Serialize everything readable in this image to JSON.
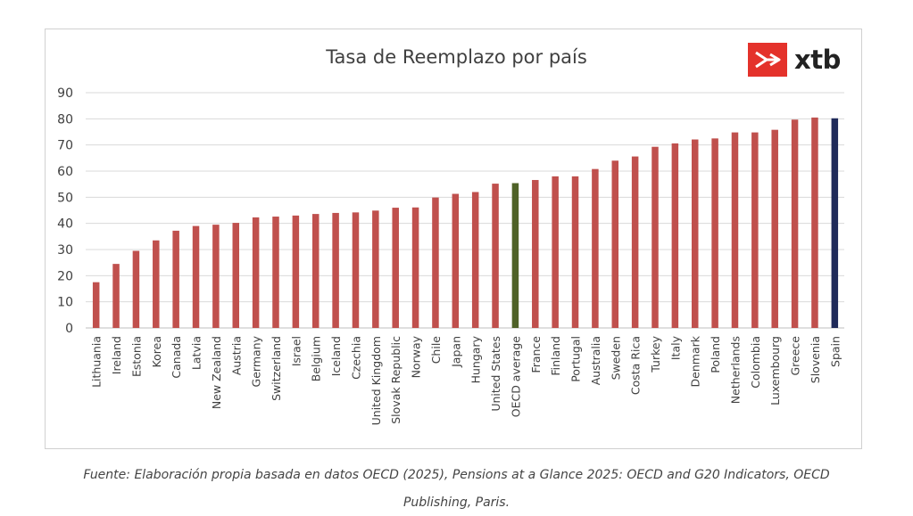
{
  "header": {
    "title": "Tasa de Reemplazo por país"
  },
  "logo": {
    "text": "xtb",
    "mark_icon": "xtb-logo-x-icon",
    "color": "#e4322b"
  },
  "caption": {
    "line1": "Fuente: Elaboración propia basada en datos OECD (2025), Pensions at a Glance 2025: OECD and G20 Indicators, OECD",
    "line2": "Publishing, Paris."
  },
  "colors": {
    "default": "#c0504d",
    "oecd_average": "#4f6228",
    "highlight": "#1f2a5a",
    "grid": "#d9d9d9",
    "text": "#404040"
  },
  "chart_data": {
    "type": "bar",
    "title": "Tasa de Reemplazo por país",
    "xlabel": "",
    "ylabel": "",
    "ylim": [
      0,
      90
    ],
    "yticks": [
      0,
      10,
      20,
      30,
      40,
      50,
      60,
      70,
      80,
      90
    ],
    "grid": true,
    "legend": "none",
    "categories": [
      "Lithuania",
      "Ireland",
      "Estonia",
      "Korea",
      "Canada",
      "Latvia",
      "New Zealand",
      "Austria",
      "Germany",
      "Switzerland",
      "Israel",
      "Belgium",
      "Iceland",
      "Czechia",
      "United Kingdom",
      "Slovak Republic",
      "Norway",
      "Chile",
      "Japan",
      "Hungary",
      "United States",
      "OECD average",
      "France",
      "Finland",
      "Portugal",
      "Australia",
      "Sweden",
      "Costa Rica",
      "Turkey",
      "Italy",
      "Denmark",
      "Poland",
      "Netherlands",
      "Colombia",
      "Luxembourg",
      "Greece",
      "Slovenia",
      "Spain"
    ],
    "values": [
      17.5,
      24.5,
      29.5,
      33.5,
      37.2,
      39,
      39.5,
      40.2,
      42.3,
      42.6,
      43,
      43.6,
      44,
      44.2,
      44.9,
      46,
      46.1,
      49.9,
      51.3,
      52,
      55.2,
      55.4,
      56.6,
      58,
      58,
      60.8,
      64,
      65.6,
      69.3,
      70.6,
      72.1,
      72.5,
      74.8,
      74.8,
      75.8,
      79.7,
      80.5,
      80.2
    ],
    "bar_colors": [
      "default",
      "default",
      "default",
      "default",
      "default",
      "default",
      "default",
      "default",
      "default",
      "default",
      "default",
      "default",
      "default",
      "default",
      "default",
      "default",
      "default",
      "default",
      "default",
      "default",
      "default",
      "oecd_average",
      "default",
      "default",
      "default",
      "default",
      "default",
      "default",
      "default",
      "default",
      "default",
      "default",
      "default",
      "default",
      "default",
      "default",
      "default",
      "highlight"
    ]
  }
}
